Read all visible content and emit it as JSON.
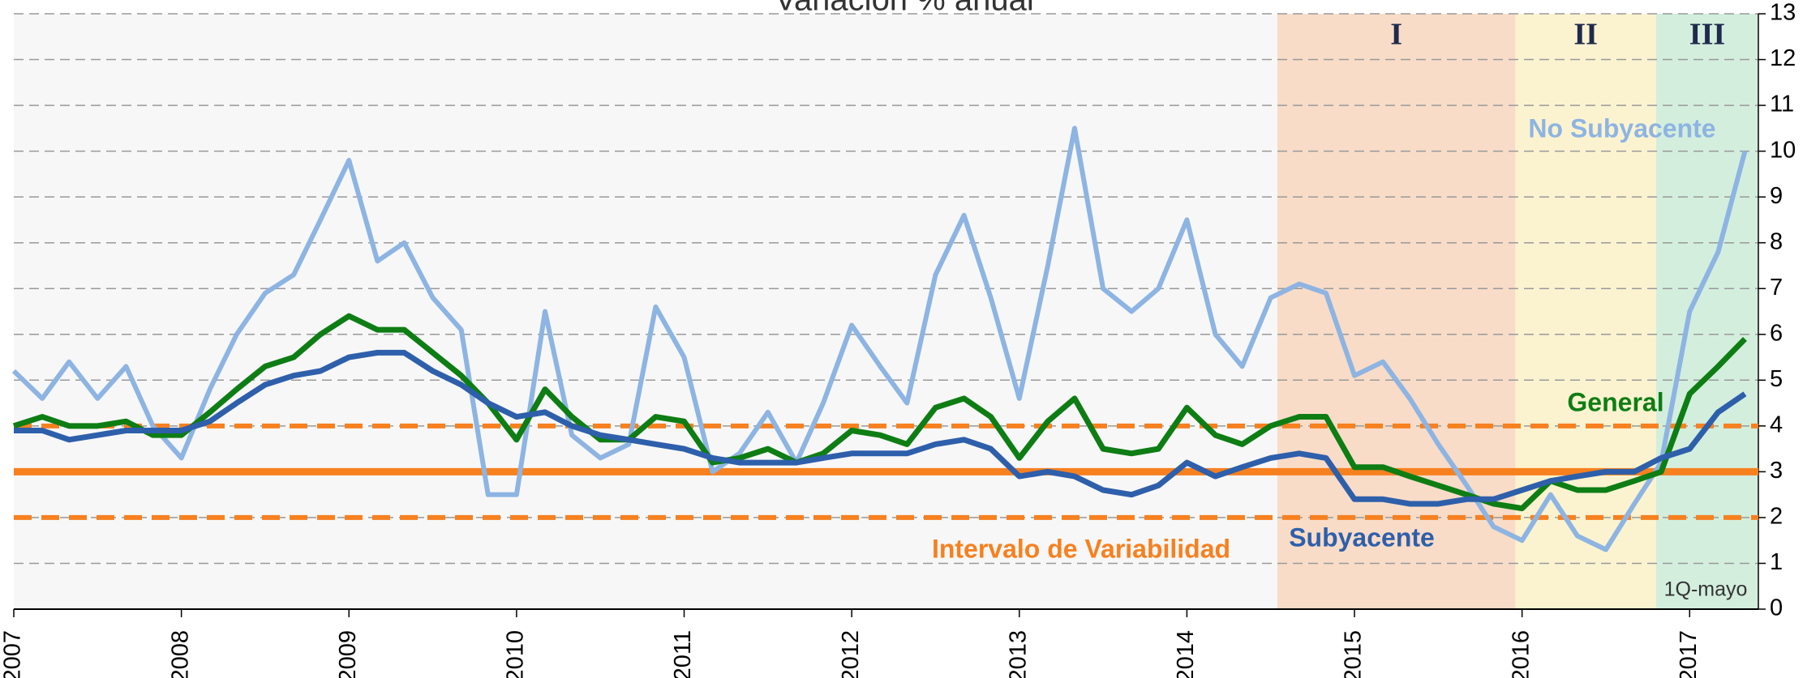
{
  "chart_data": {
    "type": "line",
    "title": "Variación % anual",
    "x": [
      2007,
      2007.17,
      2007.33,
      2007.5,
      2007.67,
      2007.83,
      2008,
      2008.17,
      2008.33,
      2008.5,
      2008.67,
      2008.83,
      2009,
      2009.17,
      2009.33,
      2009.5,
      2009.67,
      2009.83,
      2010,
      2010.17,
      2010.33,
      2010.5,
      2010.67,
      2010.83,
      2011,
      2011.17,
      2011.33,
      2011.5,
      2011.67,
      2011.83,
      2012,
      2012.17,
      2012.33,
      2012.5,
      2012.67,
      2012.83,
      2013,
      2013.17,
      2013.33,
      2013.5,
      2013.67,
      2013.83,
      2014,
      2014.17,
      2014.33,
      2014.5,
      2014.67,
      2014.83,
      2015,
      2015.17,
      2015.33,
      2015.5,
      2015.67,
      2015.83,
      2016,
      2016.17,
      2016.33,
      2016.5,
      2016.67,
      2016.83,
      2017,
      2017.17,
      2017.33
    ],
    "series": [
      {
        "name": "No Subyacente",
        "color": "#8db4e2",
        "values": [
          5.2,
          4.6,
          5.4,
          4.6,
          5.3,
          4.0,
          3.3,
          4.8,
          6.0,
          6.9,
          7.3,
          8.5,
          9.8,
          7.6,
          8.0,
          6.8,
          6.1,
          2.5,
          2.5,
          6.5,
          3.8,
          3.3,
          3.6,
          6.6,
          5.5,
          3.0,
          3.4,
          4.3,
          3.2,
          4.5,
          6.2,
          5.3,
          4.5,
          7.3,
          8.6,
          6.8,
          4.6,
          7.5,
          10.5,
          7.0,
          6.5,
          7.0,
          8.5,
          6.0,
          5.3,
          6.8,
          7.1,
          6.9,
          5.1,
          5.4,
          4.6,
          3.6,
          2.7,
          1.8,
          1.5,
          2.5,
          1.6,
          1.3,
          2.3,
          3.2,
          6.5,
          7.8,
          10.0
        ]
      },
      {
        "name": "General",
        "color": "#0e7d14",
        "values": [
          4.0,
          4.2,
          4.0,
          4.0,
          4.1,
          3.8,
          3.8,
          4.3,
          4.8,
          5.3,
          5.5,
          6.0,
          6.4,
          6.1,
          6.1,
          5.6,
          5.1,
          4.5,
          3.7,
          4.8,
          4.2,
          3.7,
          3.7,
          4.2,
          4.1,
          3.2,
          3.3,
          3.5,
          3.2,
          3.4,
          3.9,
          3.8,
          3.6,
          4.4,
          4.6,
          4.2,
          3.3,
          4.1,
          4.6,
          3.5,
          3.4,
          3.5,
          4.4,
          3.8,
          3.6,
          4.0,
          4.2,
          4.2,
          3.1,
          3.1,
          2.9,
          2.7,
          2.5,
          2.3,
          2.2,
          2.8,
          2.6,
          2.6,
          2.8,
          3.0,
          4.7,
          5.3,
          5.9
        ]
      },
      {
        "name": "Subyacente",
        "color": "#2e5faa",
        "values": [
          3.9,
          3.9,
          3.7,
          3.8,
          3.9,
          3.9,
          3.9,
          4.1,
          4.5,
          4.9,
          5.1,
          5.2,
          5.5,
          5.6,
          5.6,
          5.2,
          4.9,
          4.5,
          4.2,
          4.3,
          4.0,
          3.8,
          3.7,
          3.6,
          3.5,
          3.3,
          3.2,
          3.2,
          3.2,
          3.3,
          3.4,
          3.4,
          3.4,
          3.6,
          3.7,
          3.5,
          2.9,
          3.0,
          2.9,
          2.6,
          2.5,
          2.7,
          3.2,
          2.9,
          3.1,
          3.3,
          3.4,
          3.3,
          2.4,
          2.4,
          2.3,
          2.3,
          2.4,
          2.4,
          2.6,
          2.8,
          2.9,
          3.0,
          3.0,
          3.3,
          3.5,
          4.3,
          4.7
        ]
      }
    ],
    "target": {
      "value": 3,
      "color": "#f7801f"
    },
    "interval": {
      "label": "Intervalo de Variabilidad",
      "values": [
        2,
        4
      ],
      "color": "#f7801f"
    },
    "periods": [
      {
        "label": "I",
        "start": 2014.54,
        "end": 2015.96,
        "color": "#f8dcc8"
      },
      {
        "label": "II",
        "start": 2015.96,
        "end": 2016.8,
        "color": "#fbf3d0"
      },
      {
        "label": "III",
        "start": 2016.8,
        "end": 2017.41,
        "color": "#d3eedd"
      }
    ],
    "annotation": "1Q-mayo",
    "xlim": [
      2007,
      2017.41
    ],
    "xticks": [
      2007,
      2008,
      2009,
      2010,
      2011,
      2012,
      2013,
      2014,
      2015,
      2016,
      2017
    ],
    "ylim": [
      0,
      13
    ],
    "yticks": [
      0,
      1,
      2,
      3,
      4,
      5,
      6,
      7,
      8,
      9,
      10,
      11,
      12,
      13
    ],
    "grid": true
  }
}
